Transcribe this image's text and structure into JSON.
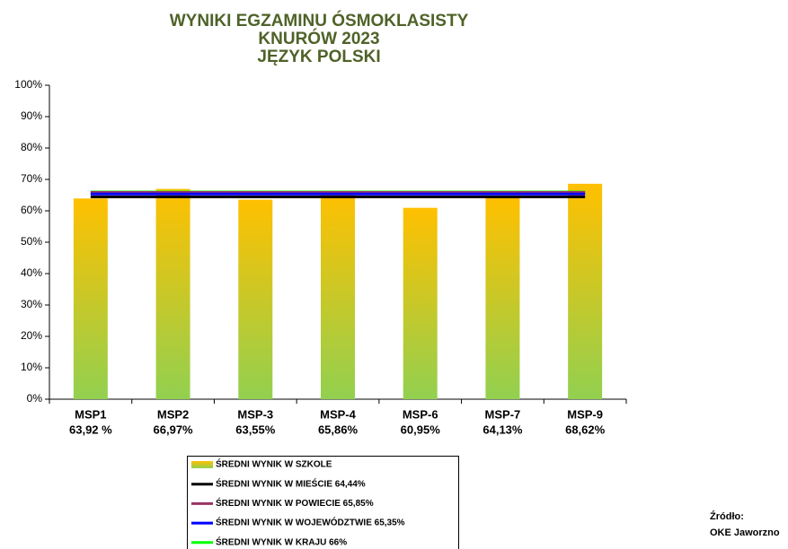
{
  "chart_data": {
    "type": "bar",
    "title": [
      "WYNIKI EGZAMINU ÓSMOKLASISTY",
      "KNURÓW 2023",
      "JĘZYK POLSKI"
    ],
    "categories": [
      "MSP1",
      "MSP2",
      "MSP-3",
      "MSP-4",
      "MSP-6",
      "MSP-7",
      "MSP-9"
    ],
    "series": [
      {
        "name": "ŚREDNI WYNIK W SZKOLE",
        "color": [
          "#ffc000",
          "#92d050"
        ],
        "values": [
          63.92,
          66.97,
          63.55,
          65.86,
          60.95,
          64.13,
          68.62
        ],
        "value_labels": [
          "63,92 %",
          "66,97%",
          "63,55%",
          "65,86%",
          "60,95%",
          "64,13%",
          "68,62%"
        ]
      }
    ],
    "reference_lines": [
      {
        "name": "ŚREDNI WYNIK W MIEŚCIE 64,44%",
        "color": "#000000",
        "value": 64.44
      },
      {
        "name": "ŚREDNI WYNIK W POWIECIE 65,85%",
        "color": "#993366",
        "value": 65.85
      },
      {
        "name": "ŚREDNI WYNIK W WOJEWÓDZTWIE 65,35%",
        "color": "#0000ff",
        "value": 65.35
      },
      {
        "name": "ŚREDNI WYNIK W KRAJU 66%",
        "color": "#00ff00",
        "value": 66
      }
    ],
    "ylim": [
      0,
      100
    ],
    "yticks": [
      {
        "value": 0,
        "label": "0%"
      },
      {
        "value": 10,
        "label": "10%"
      },
      {
        "value": 20,
        "label": "20%"
      },
      {
        "value": 30,
        "label": "30%"
      },
      {
        "value": 40,
        "label": "40%"
      },
      {
        "value": 50,
        "label": "50%"
      },
      {
        "value": 60,
        "label": "60%"
      },
      {
        "value": 70,
        "label": "70%"
      },
      {
        "value": 80,
        "label": "80%"
      },
      {
        "value": 90,
        "label": "90%"
      },
      {
        "value": 100,
        "label": "100%"
      }
    ],
    "grid": false,
    "source": [
      "Źródło:",
      "OKE Jaworzno"
    ]
  }
}
